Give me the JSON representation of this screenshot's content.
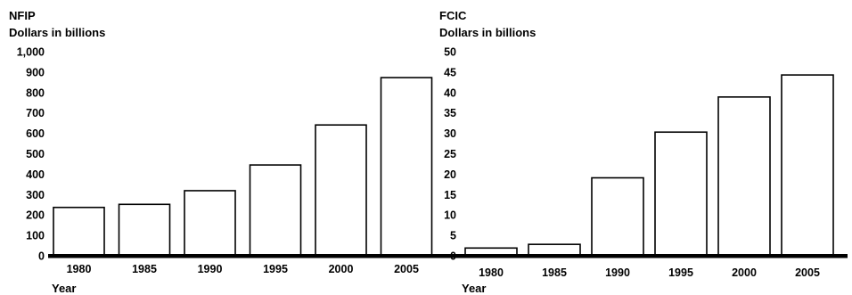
{
  "chart_data": [
    {
      "type": "bar",
      "title": "NFIP",
      "ylabel": "Dollars in billions",
      "xlabel": "Year",
      "categories": [
        "1980",
        "1985",
        "1990",
        "1995",
        "2000",
        "2005"
      ],
      "values": [
        237,
        252,
        319,
        445,
        641,
        873
      ],
      "ylim": [
        0,
        1000
      ],
      "yticks": [
        "0",
        "100",
        "200",
        "300",
        "400",
        "500",
        "600",
        "700",
        "800",
        "900",
        "1,000"
      ],
      "grid": false,
      "colors": {
        "bar_fill": "#ffffff",
        "bar_stroke": "#000000",
        "axis": "#000000"
      }
    },
    {
      "type": "bar",
      "title": "FCIC",
      "ylabel": "Dollars in billions",
      "xlabel": "Year",
      "categories": [
        "1980",
        "1985",
        "1990",
        "1995",
        "2000",
        "2005"
      ],
      "values": [
        1.9,
        2.8,
        19.1,
        30.3,
        38.9,
        44.3
      ],
      "ylim": [
        0,
        50
      ],
      "yticks": [
        "0",
        "5",
        "10",
        "15",
        "20",
        "25",
        "30",
        "35",
        "40",
        "45",
        "50"
      ],
      "grid": false,
      "colors": {
        "bar_fill": "#ffffff",
        "bar_stroke": "#000000",
        "axis": "#000000"
      }
    }
  ]
}
